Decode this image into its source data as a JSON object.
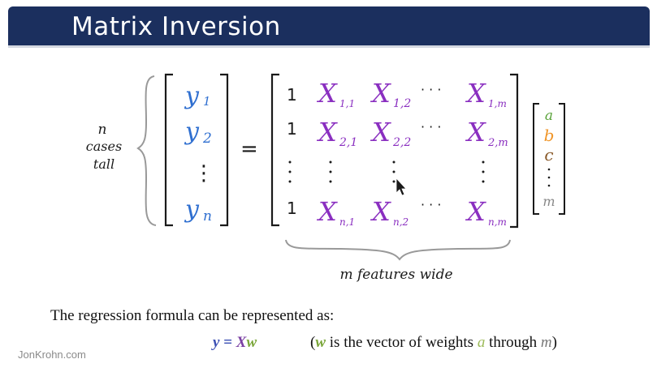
{
  "slide": {
    "title": "Matrix Inversion",
    "footer": "JonKrohn.com"
  },
  "diagram": {
    "rows_label": [
      "n",
      "cases",
      "tall"
    ],
    "columns_label": "m features wide",
    "equals": "=",
    "y_vector": [
      "y",
      "1",
      "y",
      "2",
      "⋮",
      "y",
      "n"
    ],
    "x_matrix": {
      "ones": "1",
      "r1": [
        "X",
        "1,1",
        "X",
        "1,2",
        "· · ·",
        "X",
        "1,m"
      ],
      "r2": [
        "X",
        "2,1",
        "X",
        "2,2",
        "· · ·",
        "X",
        "2,m"
      ],
      "r4": [
        "X",
        "n,1",
        "X",
        "n,2",
        "· · ·",
        "X",
        "n,m"
      ]
    },
    "w_vector": [
      "a",
      "b",
      "c",
      "m"
    ],
    "colors": {
      "y": "#2f6fd0",
      "X": "#8a2fc0",
      "a": "#5aa33a",
      "b": "#f0962a",
      "c": "#8a5a2a",
      "m": "#888888",
      "ink": "#1a1a1a"
    }
  },
  "caption": "The regression formula can be represented as:",
  "formula": {
    "y": "y",
    "eq": " = ",
    "X": "X",
    "w": "w"
  },
  "note": {
    "open": "(",
    "w": "w",
    "mid": " is the vector of weights ",
    "a": "a",
    "through": " through ",
    "m": "m",
    "close": ")"
  }
}
